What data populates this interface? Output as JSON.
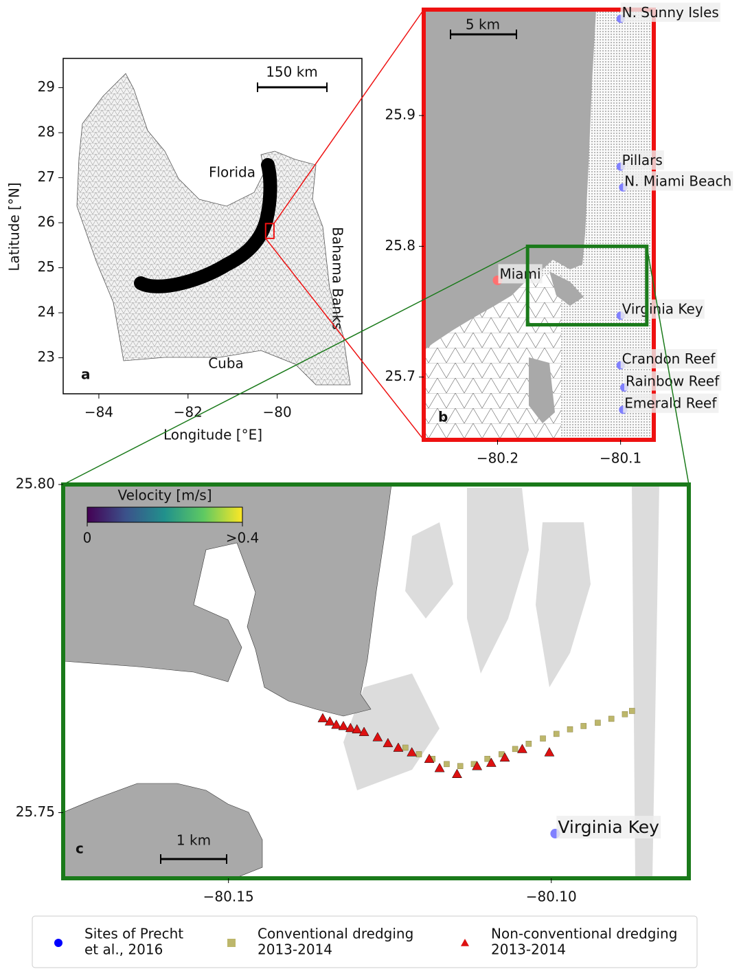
{
  "chart_data": [
    {
      "type": "map",
      "panel": "a",
      "frame_color": "#000000",
      "xlabel": "Longitude [°E]",
      "ylabel": "Latitude [°N]",
      "xlim": [
        -84.8,
        -78.1
      ],
      "ylim": [
        22.2,
        29.65
      ],
      "xticks": [
        {
          "value": -84,
          "label": "−84"
        },
        {
          "value": -82,
          "label": "−82"
        },
        {
          "value": -80,
          "label": "−80"
        }
      ],
      "yticks": [
        23,
        24,
        25,
        26,
        27,
        28,
        29
      ],
      "labels": [
        "Florida",
        "Cuba",
        "Bahama Banks"
      ],
      "scale_bar": "150 km"
    },
    {
      "type": "map",
      "panel": "b",
      "frame_color": "#ee1111",
      "xlim": [
        -80.26,
        -80.073
      ],
      "ylim": [
        25.652,
        25.981
      ],
      "xticks": [
        {
          "value": -80.2,
          "label": "−80.2"
        },
        {
          "value": -80.1,
          "label": "−80.1"
        }
      ],
      "yticks": [
        25.7,
        25.8,
        25.9
      ],
      "scale_bar": "5 km",
      "site_color": "#8080ff",
      "sites": [
        {
          "name": "N. Sunny Isles",
          "lon": -80.1,
          "lat": 25.974
        },
        {
          "name": "Pillars",
          "lon": -80.1,
          "lat": 25.861
        },
        {
          "name": "N. Miami Beach",
          "lon": -80.098,
          "lat": 25.845
        },
        {
          "name": "Virginia Key",
          "lon": -80.1,
          "lat": 25.747
        },
        {
          "name": "Crandon Reef",
          "lon": -80.1,
          "lat": 25.709
        },
        {
          "name": "Rainbow Reef",
          "lon": -80.097,
          "lat": 25.692
        },
        {
          "name": "Emerald Reef",
          "lon": -80.098,
          "lat": 25.675
        }
      ],
      "city": {
        "name": "Miami",
        "lon": -80.2,
        "lat": 25.774,
        "color": "#ff7070"
      }
    },
    {
      "type": "map",
      "panel": "c",
      "frame_color": "#1a7a1a",
      "xlim": [
        -80.1756,
        -80.0787
      ],
      "ylim": [
        25.74,
        25.8
      ],
      "xticks": [
        {
          "value": -80.15,
          "label": "−80.15"
        },
        {
          "value": -80.1,
          "label": "−80.10"
        }
      ],
      "yticks": [
        25.75,
        {
          "value": 25.8,
          "label": "25.80"
        }
      ],
      "scale_bar": "1 km",
      "colorbar": {
        "label": "Velocity [m/s]",
        "lim": [
          0,
          0.4
        ],
        "ticks": [
          0,
          {
            "value": 0.4,
            "label": ">0.4"
          }
        ]
      },
      "site": {
        "name": "Virginia Key",
        "lon": -80.0994,
        "lat": 25.7468,
        "color": "#8080ff"
      },
      "conventional": {
        "color": "#bdb76b",
        "lon": [
          -80.1226,
          -80.1205,
          -80.1184,
          -80.1162,
          -80.1141,
          -80.112,
          -80.1099,
          -80.1077,
          -80.1056,
          -80.1035,
          -80.1013,
          -80.0992,
          -80.0971,
          -80.095,
          -80.0928,
          -80.0907,
          -80.0886,
          -80.0875
        ],
        "lat": [
          25.7599,
          25.7589,
          25.7582,
          25.7574,
          25.7571,
          25.7574,
          25.7582,
          25.7589,
          25.7597,
          25.7605,
          25.7613,
          25.762,
          25.7627,
          25.7632,
          25.7637,
          25.7643,
          25.765,
          25.7655
        ]
      },
      "non_conventional": {
        "color": "#dd1111",
        "lon": [
          -80.1354,
          -80.1343,
          -80.1333,
          -80.1322,
          -80.1311,
          -80.1301,
          -80.129,
          -80.1269,
          -80.1253,
          -80.1237,
          -80.1216,
          -80.1189,
          -80.1173,
          -80.1146,
          -80.1115,
          -80.1093,
          -80.1072,
          -80.1045,
          -80.1003
        ],
        "lat": [
          25.7644,
          25.7639,
          25.7634,
          25.7632,
          25.7629,
          25.7627,
          25.7623,
          25.7615,
          25.7606,
          25.7599,
          25.7592,
          25.7582,
          25.7568,
          25.7559,
          25.7571,
          25.7576,
          25.7584,
          25.7597,
          25.7592
        ]
      }
    }
  ],
  "legend": {
    "items": [
      {
        "lines": [
          "Sites of Precht",
          "et al., 2016"
        ],
        "marker": "circle",
        "color": "#0000ff"
      },
      {
        "lines": [
          "Conventional dredging",
          "2013-2014"
        ],
        "marker": "square",
        "color": "#bdb76b"
      },
      {
        "lines": [
          "Non-conventional dredging",
          "2013-2014"
        ],
        "marker": "triangle",
        "color": "#dd1111"
      }
    ]
  }
}
